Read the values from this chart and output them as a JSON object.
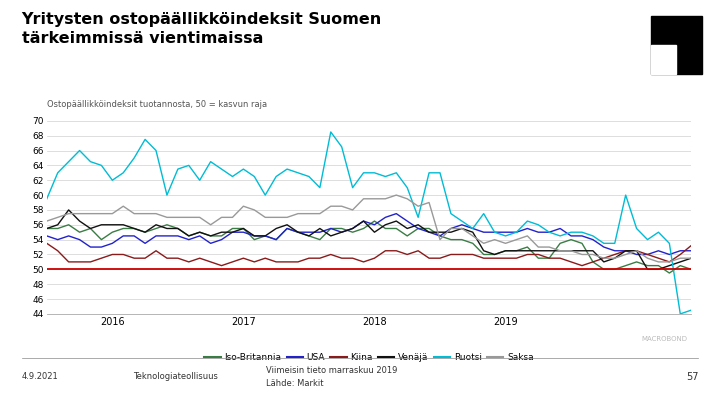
{
  "title_line1": "Yritysten ostopäällikköindeksit Suomen",
  "title_line2": "tärkeimmissä vientimaissa",
  "ylabel": "Ostopäällikköindeksit tuotannosta, 50 = kasvun raja",
  "ylim": [
    44,
    71
  ],
  "yticks": [
    44,
    46,
    48,
    50,
    52,
    54,
    56,
    58,
    60,
    62,
    64,
    66,
    68,
    70
  ],
  "ref_line": 50,
  "ref_color": "#cc0000",
  "footer_left": "4.9.2021",
  "footer_center": "Teknologiateollisuus",
  "footer_right_line1": "Viimeisin tieto marraskuu 2019",
  "footer_right_line2": "Lähde: Markit",
  "footer_page": "57",
  "watermark": "MACROBOND",
  "legend_entries": [
    "Iso-Britannia",
    "USA",
    "Kiina",
    "Venäjä",
    "Ruotsi",
    "Saksa"
  ],
  "series_colors": [
    "#3a7d44",
    "#2222cc",
    "#8b1a1a",
    "#111111",
    "#00bcd4",
    "#999999"
  ],
  "x_tick_labels": [
    "2016",
    "2017",
    "2018",
    "2019"
  ],
  "iso_britannia": [
    55.5,
    55.5,
    56.0,
    55.0,
    55.5,
    54.0,
    55.0,
    55.5,
    55.5,
    55.0,
    55.5,
    56.0,
    55.5,
    54.5,
    55.0,
    54.5,
    54.5,
    55.5,
    55.5,
    54.0,
    54.5,
    54.0,
    55.5,
    55.0,
    54.5,
    54.0,
    55.5,
    55.5,
    55.0,
    55.5,
    56.5,
    55.5,
    55.5,
    54.5,
    55.5,
    55.5,
    54.5,
    54.0,
    54.0,
    53.5,
    52.0,
    52.0,
    52.5,
    52.5,
    53.0,
    51.5,
    51.5,
    53.5,
    54.0,
    53.5,
    51.0,
    50.0,
    50.0,
    50.5,
    51.0,
    50.5,
    50.5,
    49.5,
    50.5,
    50.0
  ],
  "usa": [
    54.5,
    54.0,
    54.5,
    54.0,
    53.0,
    53.0,
    53.5,
    54.5,
    54.5,
    53.5,
    54.5,
    54.5,
    54.5,
    54.0,
    54.5,
    53.5,
    54.0,
    55.0,
    55.0,
    54.5,
    54.5,
    54.0,
    55.5,
    55.0,
    55.0,
    55.0,
    55.5,
    55.0,
    55.5,
    56.5,
    56.0,
    57.0,
    57.5,
    56.5,
    55.5,
    55.0,
    54.5,
    55.5,
    56.0,
    55.5,
    55.0,
    55.0,
    55.0,
    55.0,
    55.5,
    55.0,
    55.0,
    55.5,
    54.5,
    54.5,
    54.0,
    53.0,
    52.5,
    52.5,
    52.0,
    52.0,
    52.5,
    52.0,
    52.5,
    52.5
  ],
  "kiina": [
    53.5,
    52.5,
    51.0,
    51.0,
    51.0,
    51.5,
    52.0,
    52.0,
    51.5,
    51.5,
    52.5,
    51.5,
    51.5,
    51.0,
    51.5,
    51.0,
    50.5,
    51.0,
    51.5,
    51.0,
    51.5,
    51.0,
    51.0,
    51.0,
    51.5,
    51.5,
    52.0,
    51.5,
    51.5,
    51.0,
    51.5,
    52.5,
    52.5,
    52.0,
    52.5,
    51.5,
    51.5,
    52.0,
    52.0,
    52.0,
    51.5,
    51.5,
    51.5,
    51.5,
    52.0,
    52.0,
    51.5,
    51.5,
    51.0,
    50.5,
    51.0,
    51.5,
    52.0,
    52.5,
    52.5,
    52.0,
    51.5,
    51.0,
    52.0,
    53.2
  ],
  "venaja": [
    55.5,
    56.0,
    58.0,
    56.5,
    55.5,
    56.0,
    56.0,
    56.0,
    55.5,
    55.0,
    56.0,
    55.5,
    55.5,
    54.5,
    55.0,
    54.5,
    55.0,
    55.0,
    55.5,
    54.5,
    54.5,
    55.5,
    56.0,
    55.0,
    54.5,
    55.5,
    54.5,
    55.0,
    55.5,
    56.5,
    55.0,
    56.0,
    56.5,
    55.5,
    56.0,
    55.0,
    55.0,
    55.0,
    55.5,
    55.0,
    52.5,
    52.0,
    52.5,
    52.5,
    52.5,
    52.5,
    52.5,
    52.5,
    52.5,
    52.5,
    52.5,
    51.0,
    51.5,
    52.5,
    52.5,
    50.0,
    50.0,
    50.5,
    51.0,
    51.5
  ],
  "ruotsi": [
    59.5,
    63.0,
    64.5,
    66.0,
    64.5,
    64.0,
    62.0,
    63.0,
    65.0,
    67.5,
    66.0,
    60.0,
    63.5,
    64.0,
    62.0,
    64.5,
    63.5,
    62.5,
    63.5,
    62.5,
    60.0,
    62.5,
    63.5,
    63.0,
    62.5,
    61.0,
    68.5,
    66.5,
    61.0,
    63.0,
    63.0,
    62.5,
    63.0,
    61.0,
    57.0,
    63.0,
    63.0,
    57.5,
    56.5,
    55.5,
    57.5,
    55.0,
    54.5,
    55.0,
    56.5,
    56.0,
    55.0,
    54.5,
    55.0,
    55.0,
    54.5,
    53.5,
    53.5,
    60.0,
    55.5,
    54.0,
    55.0,
    53.5,
    44.0,
    44.5
  ],
  "saksa": [
    56.5,
    57.0,
    57.5,
    57.5,
    57.5,
    57.5,
    57.5,
    58.5,
    57.5,
    57.5,
    57.5,
    57.0,
    57.0,
    57.0,
    57.0,
    56.0,
    57.0,
    57.0,
    58.5,
    58.0,
    57.0,
    57.0,
    57.0,
    57.5,
    57.5,
    57.5,
    58.5,
    58.5,
    58.0,
    59.5,
    59.5,
    59.5,
    60.0,
    59.5,
    58.5,
    59.0,
    54.0,
    55.5,
    55.5,
    54.5,
    53.5,
    54.0,
    53.5,
    54.0,
    54.5,
    53.0,
    53.0,
    52.5,
    52.5,
    52.0,
    52.0,
    51.5,
    51.5,
    52.0,
    52.5,
    51.5,
    51.0,
    51.0,
    51.5,
    51.5
  ]
}
